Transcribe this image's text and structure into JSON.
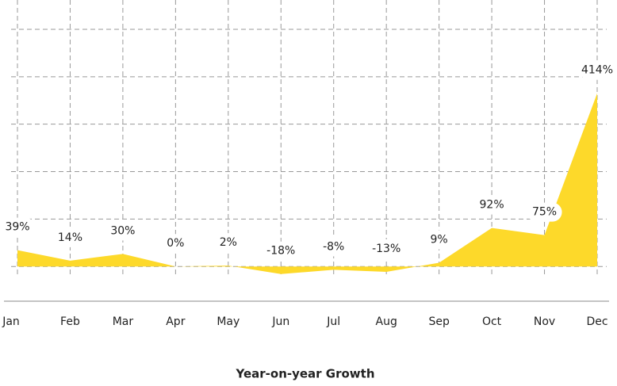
{
  "chart_data": {
    "type": "area",
    "title": "Year-on-year Growth",
    "categories": [
      "Jan",
      "Feb",
      "Mar",
      "Apr",
      "May",
      "Jun",
      "Jul",
      "Aug",
      "Sep",
      "Oct",
      "Nov",
      "Dec"
    ],
    "values": [
      39,
      14,
      30,
      0,
      2,
      -18,
      -8,
      -13,
      9,
      92,
      75,
      414
    ],
    "value_labels": [
      "39%",
      "14%",
      "30%",
      "0%",
      "2%",
      "-18%",
      "-8%",
      "-13%",
      "9%",
      "92%",
      "75%",
      "414%"
    ],
    "color": "#fdd92a",
    "ylim": [
      -83,
      567
    ],
    "grid": true
  }
}
